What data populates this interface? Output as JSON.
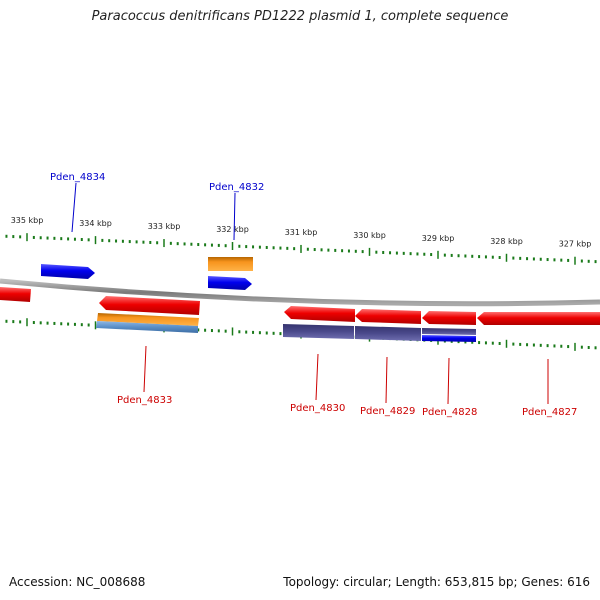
{
  "title": "Paracoccus denitrificans PD1222 plasmid 1, complete sequence",
  "footer": {
    "accession": "Accession: NC_008688",
    "summary": "Topology: circular; Length: 653,815 bp; Genes: 616"
  },
  "colors": {
    "forward_label": "#0000cc",
    "reverse_label": "#cc0000",
    "tick": "#1a7a1a",
    "backbone": "#888888",
    "gene_red": "#ee0000",
    "gene_blue": "#0000ee",
    "gene_orange": "#f7941d",
    "gene_purple": "#4b4a8c",
    "gene_steelblue": "#5b8fc7"
  },
  "ticks": [
    {
      "label": "335 kbp",
      "pos": 335
    },
    {
      "label": "334 kbp",
      "pos": 334
    },
    {
      "label": "333 kbp",
      "pos": 333
    },
    {
      "label": "332 kbp",
      "pos": 332
    },
    {
      "label": "331 kbp",
      "pos": 331
    },
    {
      "label": "330 kbp",
      "pos": 330
    },
    {
      "label": "329 kbp",
      "pos": 329
    },
    {
      "label": "328 kbp",
      "pos": 328
    },
    {
      "label": "327 kbp",
      "pos": 327
    }
  ],
  "genes": [
    {
      "name": "Pden_4834",
      "strand": "forward",
      "labeled": true
    },
    {
      "name": "Pden_4832",
      "strand": "forward",
      "labeled": true
    },
    {
      "name": "Pden_4833",
      "strand": "reverse",
      "labeled": true
    },
    {
      "name": "Pden_4830",
      "strand": "reverse",
      "labeled": true
    },
    {
      "name": "Pden_4829",
      "strand": "reverse",
      "labeled": true
    },
    {
      "name": "Pden_4828",
      "strand": "reverse",
      "labeled": true
    },
    {
      "name": "Pden_4827",
      "strand": "reverse",
      "labeled": true
    }
  ]
}
